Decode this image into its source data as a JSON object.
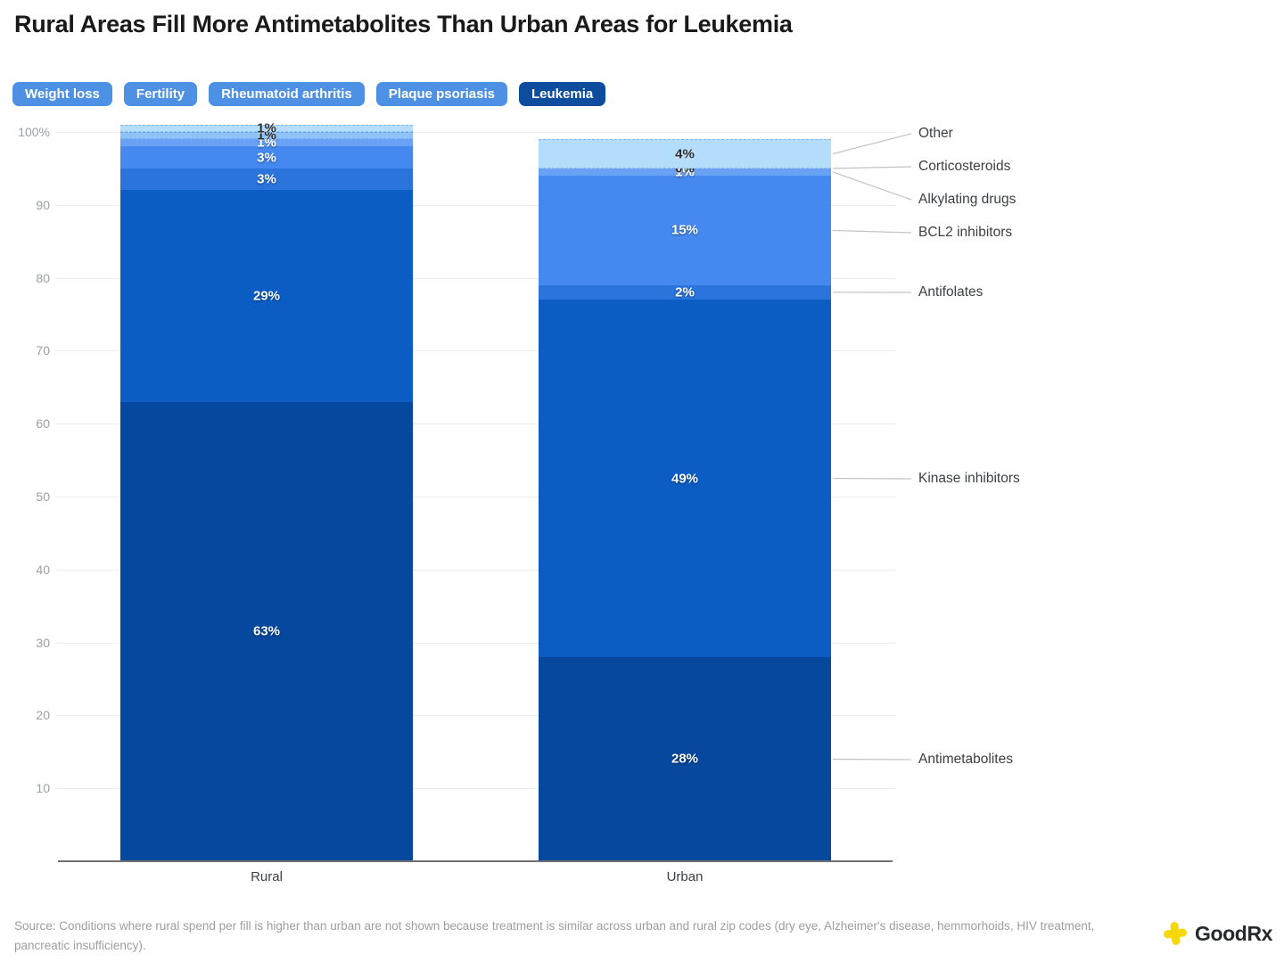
{
  "title": "Rural Areas Fill More Antimetabolites Than Urban Areas for Leukemia",
  "tabs": [
    {
      "label": "Weight loss",
      "selected": false
    },
    {
      "label": "Fertility",
      "selected": false
    },
    {
      "label": "Rheumatoid arthritis",
      "selected": false
    },
    {
      "label": "Plaque psoriasis",
      "selected": false
    },
    {
      "label": "Leukemia",
      "selected": true
    }
  ],
  "chart_data": {
    "type": "bar",
    "subtype": "stacked-percent-columns",
    "categories": [
      "Rural",
      "Urban"
    ],
    "series": [
      {
        "name": "Antimetabolites",
        "color": "#05489e",
        "label_dark": false,
        "dashed": false,
        "values": [
          63,
          28
        ]
      },
      {
        "name": "Kinase inhibitors",
        "color": "#0b5dc4",
        "label_dark": false,
        "dashed": false,
        "values": [
          29,
          49
        ]
      },
      {
        "name": "Antifolates",
        "color": "#2b74dc",
        "label_dark": false,
        "dashed": false,
        "values": [
          3,
          2
        ]
      },
      {
        "name": "BCL2 inhibitors",
        "color": "#4589f0",
        "label_dark": false,
        "dashed": false,
        "values": [
          3,
          15
        ]
      },
      {
        "name": "Alkylating drugs",
        "color": "#69a2f5",
        "label_dark": false,
        "dashed": false,
        "values": [
          1,
          1
        ]
      },
      {
        "name": "Corticosteroids",
        "color": "#8ec2f8",
        "label_dark": true,
        "dashed": true,
        "values": [
          1,
          0
        ]
      },
      {
        "name": "Other",
        "color": "#b4dcfb",
        "label_dark": true,
        "dashed": true,
        "values": [
          1,
          4
        ]
      }
    ],
    "data_label_format": "{v}%",
    "y_ticks": [
      {
        "value": 10,
        "label": "10"
      },
      {
        "value": 20,
        "label": "20"
      },
      {
        "value": 30,
        "label": "30"
      },
      {
        "value": 40,
        "label": "40"
      },
      {
        "value": 50,
        "label": "50"
      },
      {
        "value": 60,
        "label": "60"
      },
      {
        "value": 70,
        "label": "70"
      },
      {
        "value": 80,
        "label": "80"
      },
      {
        "value": 90,
        "label": "90"
      },
      {
        "value": 100,
        "label": "100%"
      }
    ],
    "ylim": [
      0,
      100
    ],
    "grid": true,
    "legend_position": "right",
    "legend_order_top_to_bottom": [
      "Other",
      "Corticosteroids",
      "Alkylating drugs",
      "BCL2 inhibitors",
      "Antifolates",
      "Kinase inhibitors",
      "Antimetabolites"
    ]
  },
  "source_note": "Source: Conditions where rural spend per fill is higher than urban are not shown because treatment is similar across urban and rural zip codes (dry eye, Alzheimer's disease, hemmorhoids, HIV treatment, pancreatic insufficiency).",
  "footer": {
    "logo_text": "GoodRx"
  },
  "colors": {
    "tab_default": "#4e90e3",
    "tab_selected": "#0e4d9d",
    "leader_line": "#c2c2c2",
    "logo_yellow": "#f7d708"
  }
}
